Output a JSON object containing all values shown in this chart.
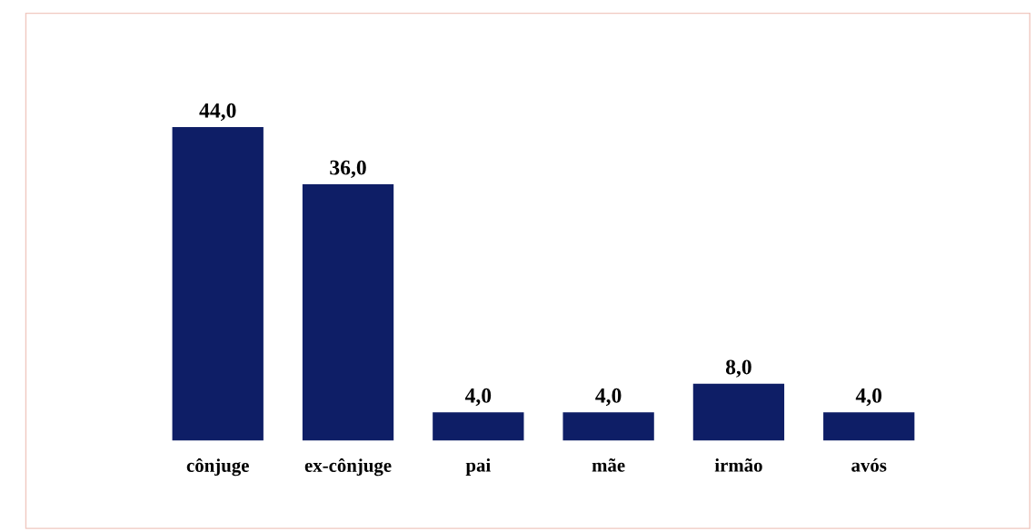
{
  "chart_data": {
    "type": "bar",
    "categories": [
      "cônjuge",
      "ex-cônjuge",
      "pai",
      "mãe",
      "irmão",
      "avós"
    ],
    "values": [
      44,
      36,
      4,
      4,
      8,
      4
    ],
    "value_labels": [
      "44,0",
      "36,0",
      "4,0",
      "4,0",
      "8,0",
      "4,0"
    ],
    "color": "#0e1e66",
    "grid": false,
    "legend": false
  }
}
